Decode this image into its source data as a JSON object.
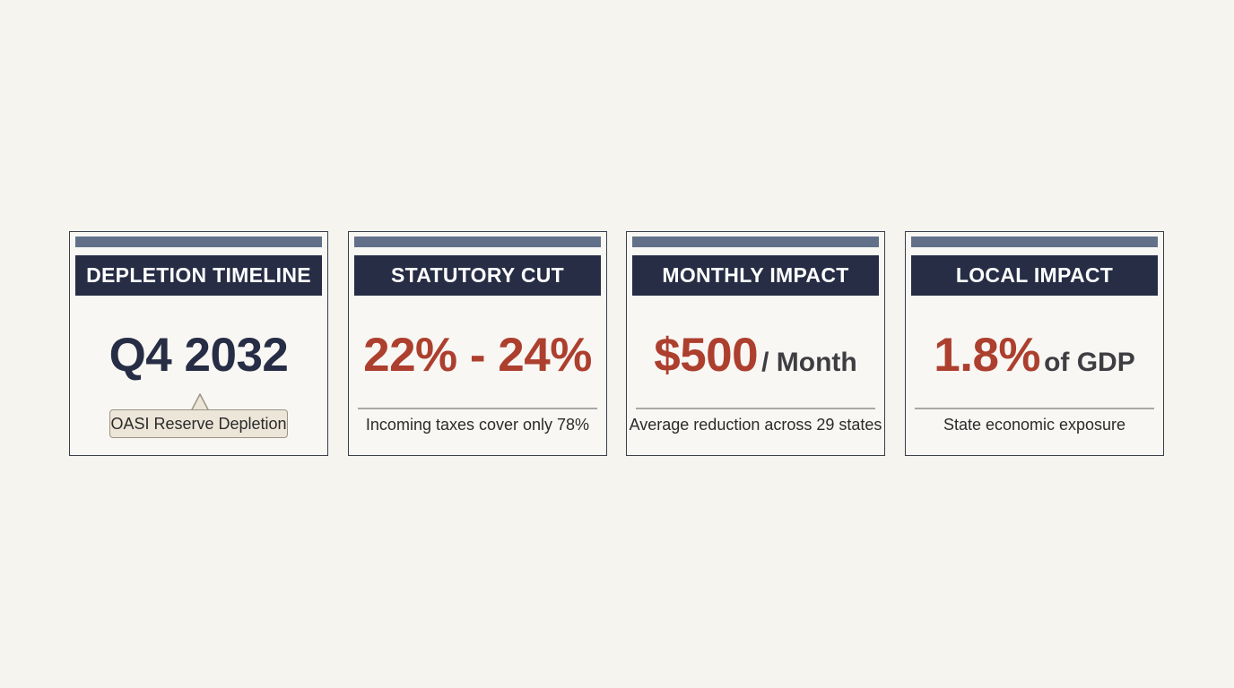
{
  "cards": [
    {
      "title": "DEPLETION TIMELINE",
      "value": "Q4 2032",
      "unit": "",
      "tooltip": "OASI Reserve Depletion"
    },
    {
      "title": "STATUTORY CUT",
      "value": "22% - 24%",
      "unit": "",
      "caption": "Incoming taxes cover only 78%"
    },
    {
      "title": "MONTHLY IMPACT",
      "value": "$500",
      "unit": "/ Month",
      "caption": "Average reduction across 29 states"
    },
    {
      "title": "LOCAL IMPACT",
      "value": "1.8%",
      "unit": "of GDP",
      "caption": "State economic exposure"
    }
  ],
  "colors": {
    "background": "#f5f4ef",
    "header": "#262d45",
    "accent_bar": "#62708a",
    "highlight_red": "#ad3f2e",
    "navy_text": "#262d45"
  }
}
